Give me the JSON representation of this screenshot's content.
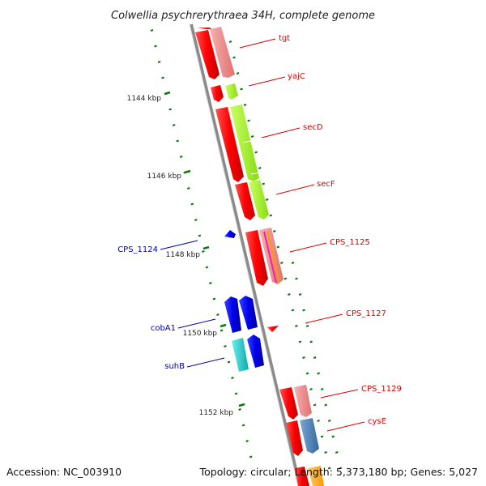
{
  "title": "Colwellia psychrerythraea 34H, complete genome",
  "footer": {
    "accession": "Accession: NC_003910",
    "summary": "Topology: circular; Length: 5,373,180 bp; Genes: 5,027"
  },
  "ticks": [
    "1144 kbp",
    "1146 kbp",
    "1148 kbp",
    "1150 kbp",
    "1152 kbp"
  ],
  "genes": [
    {
      "name": "tgt",
      "color": "#dd0000"
    },
    {
      "name": "yajC",
      "color": "#dd0000"
    },
    {
      "name": "secD",
      "color": "#dd0000"
    },
    {
      "name": "secF",
      "color": "#dd0000"
    },
    {
      "name": "CPS_1125",
      "color": "#dd0000"
    },
    {
      "name": "CPS_1127",
      "color": "#dd0000"
    },
    {
      "name": "CPS_1129",
      "color": "#dd0000"
    },
    {
      "name": "cysE",
      "color": "#dd0000"
    },
    {
      "name": "CPS_1124",
      "color": "#0000aa"
    },
    {
      "name": "cobA1",
      "color": "#0000aa"
    },
    {
      "name": "suhB",
      "color": "#0000aa"
    }
  ],
  "colors": {
    "backbone": "#8a8a8a",
    "tick": "#0a7a0a",
    "forward_cds": "#ff0000",
    "forward_feature": "#f08080",
    "reverse_cds": "#0000ee",
    "cog_lime": "#99ee22",
    "cog_cyan": "#22cccc",
    "cog_steelblue": "#4682b4",
    "cog_magenta": "#ee22aa",
    "cog_orange": "#ff9900"
  }
}
